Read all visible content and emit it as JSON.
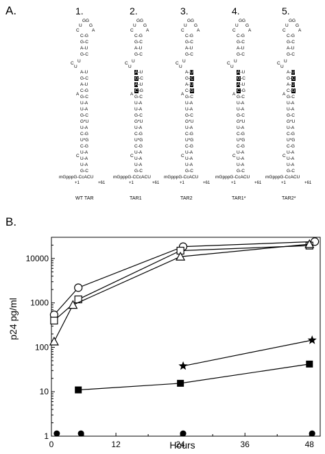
{
  "panelA": {
    "label": "A.",
    "structures": [
      {
        "num": "1.",
        "caption": "WT TAR",
        "base": "mGpppG-CcACU"
      },
      {
        "num": "2.",
        "caption": "TAR1",
        "base": "mGpppG-CCcACU"
      },
      {
        "num": "3.",
        "caption": "TAR2",
        "base": "mGpppG-CcACU"
      },
      {
        "num": "4.",
        "caption": "TAR1*",
        "base": "mGpppG-CcACU"
      },
      {
        "num": "5.",
        "caption": "TAR2*",
        "base": "mGpppG-CcACU"
      }
    ],
    "pos_start": "+1",
    "pos_end": "+61",
    "loop_top": "GG",
    "loop_u": "U",
    "loop_g": "G",
    "loop_c": "C",
    "loop_a": "A",
    "upper_stem": [
      "C-G",
      "G-C",
      "A-U",
      "G-C"
    ],
    "bulge": [
      "U",
      "U",
      "C"
    ],
    "lower_stem_wt": [
      "A-U",
      "G-C",
      "A-U",
      "C-G",
      "A G-C",
      "U-A",
      "U-A",
      "G-C",
      "G*U",
      "U-A",
      "C-G",
      "U*G",
      "C-G",
      "U-A",
      "C U-A",
      "U-A",
      "G-C"
    ]
  },
  "panelB": {
    "label": "B.",
    "ylabel": "p24 pg/ml",
    "xlabel": "Hours"
  },
  "chart_data": {
    "type": "line",
    "xlabel": "Hours",
    "ylabel": "p24 pg/ml",
    "xlim": [
      0,
      50
    ],
    "ylim": [
      1,
      30000
    ],
    "yscale": "log",
    "xticks": [
      "0",
      "12",
      "24",
      "36",
      "48"
    ],
    "yticks": [
      "1",
      "10",
      "100",
      "1000",
      "10000"
    ],
    "series": [
      {
        "marker": "circle-open",
        "x": [
          0.5,
          5,
          24.5,
          49
        ],
        "y": [
          540,
          2200,
          18500,
          24000
        ]
      },
      {
        "marker": "square-open",
        "x": [
          0.5,
          5,
          24,
          48
        ],
        "y": [
          400,
          1200,
          15000,
          19500
        ]
      },
      {
        "marker": "triangle-open",
        "x": [
          0.5,
          4,
          24,
          48
        ],
        "y": [
          135,
          900,
          11000,
          21000
        ]
      },
      {
        "marker": "star",
        "x": [
          24.5,
          48.5
        ],
        "y": [
          38,
          145
        ]
      },
      {
        "marker": "square-filled",
        "x": [
          5,
          24,
          48
        ],
        "y": [
          11,
          15.5,
          42
        ]
      },
      {
        "marker": "circle-filled",
        "x": [
          1,
          5.5,
          24.5,
          48.5
        ],
        "y": [
          1.15,
          1.15,
          1.15,
          1.15
        ]
      }
    ]
  }
}
